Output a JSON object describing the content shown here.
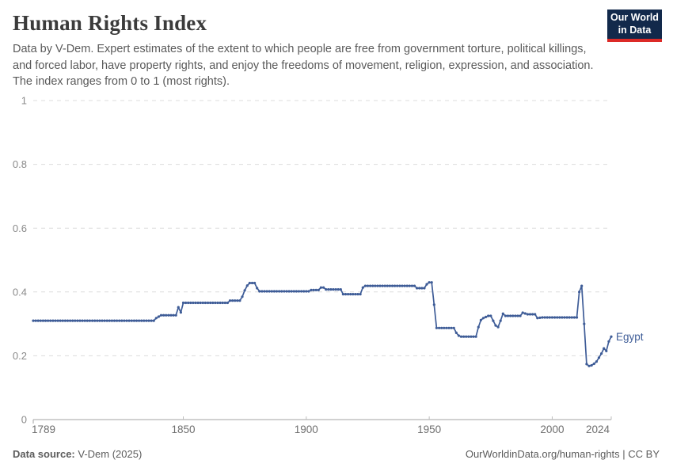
{
  "header": {
    "title": "Human Rights Index",
    "subtitle": "Data by V-Dem. Expert estimates of the extent to which people are free from government torture, political killings, and forced labor, have property rights, and enjoy the freedoms of movement, religion, expression, and association. The index ranges from 0 to 1 (most rights)."
  },
  "logo": {
    "line1": "Our World",
    "line2": "in Data",
    "bg_color": "#12294b",
    "bar_color": "#dc2a27"
  },
  "chart_data": {
    "type": "line",
    "title": "Human Rights Index",
    "xlabel": "",
    "ylabel": "",
    "grid": "horizontal-dashed",
    "legend_position": "end-of-line-label",
    "x_axis": {
      "min": 1789,
      "max": 2024,
      "ticks": [
        1789,
        1850,
        1900,
        1950,
        2000,
        2024
      ]
    },
    "y_axis": {
      "min": 0,
      "max": 1,
      "ticks": [
        0,
        0.2,
        0.4,
        0.6,
        0.8,
        1
      ]
    },
    "series": [
      {
        "name": "Egypt",
        "color": "#3e5c97",
        "points_note": "yearly values; breakpoints [year, index] linearly interpolated between",
        "points": [
          [
            1789,
            0.31
          ],
          [
            1838,
            0.31
          ],
          [
            1839,
            0.318
          ],
          [
            1841,
            0.327
          ],
          [
            1847,
            0.327
          ],
          [
            1848,
            0.352
          ],
          [
            1849,
            0.336
          ],
          [
            1850,
            0.366
          ],
          [
            1868,
            0.366
          ],
          [
            1869,
            0.373
          ],
          [
            1873,
            0.373
          ],
          [
            1874,
            0.385
          ],
          [
            1875,
            0.405
          ],
          [
            1876,
            0.42
          ],
          [
            1877,
            0.428
          ],
          [
            1879,
            0.428
          ],
          [
            1880,
            0.412
          ],
          [
            1881,
            0.402
          ],
          [
            1901,
            0.402
          ],
          [
            1902,
            0.406
          ],
          [
            1905,
            0.406
          ],
          [
            1906,
            0.414
          ],
          [
            1907,
            0.414
          ],
          [
            1908,
            0.408
          ],
          [
            1914,
            0.408
          ],
          [
            1915,
            0.393
          ],
          [
            1922,
            0.393
          ],
          [
            1923,
            0.414
          ],
          [
            1924,
            0.419
          ],
          [
            1944,
            0.419
          ],
          [
            1945,
            0.412
          ],
          [
            1948,
            0.412
          ],
          [
            1949,
            0.424
          ],
          [
            1950,
            0.43
          ],
          [
            1951,
            0.43
          ],
          [
            1952,
            0.36
          ],
          [
            1953,
            0.287
          ],
          [
            1960,
            0.287
          ],
          [
            1961,
            0.272
          ],
          [
            1962,
            0.263
          ],
          [
            1963,
            0.26
          ],
          [
            1969,
            0.26
          ],
          [
            1970,
            0.29
          ],
          [
            1971,
            0.312
          ],
          [
            1972,
            0.318
          ],
          [
            1974,
            0.325
          ],
          [
            1975,
            0.325
          ],
          [
            1976,
            0.31
          ],
          [
            1977,
            0.295
          ],
          [
            1978,
            0.29
          ],
          [
            1979,
            0.31
          ],
          [
            1980,
            0.332
          ],
          [
            1981,
            0.325
          ],
          [
            1987,
            0.325
          ],
          [
            1988,
            0.335
          ],
          [
            1990,
            0.33
          ],
          [
            1993,
            0.33
          ],
          [
            1994,
            0.318
          ],
          [
            1996,
            0.32
          ],
          [
            2010,
            0.32
          ],
          [
            2011,
            0.4
          ],
          [
            2012,
            0.419
          ],
          [
            2013,
            0.3
          ],
          [
            2014,
            0.174
          ],
          [
            2015,
            0.168
          ],
          [
            2016,
            0.17
          ],
          [
            2017,
            0.175
          ],
          [
            2018,
            0.182
          ],
          [
            2019,
            0.194
          ],
          [
            2020,
            0.207
          ],
          [
            2021,
            0.223
          ],
          [
            2022,
            0.215
          ],
          [
            2023,
            0.245
          ],
          [
            2024,
            0.26
          ]
        ]
      }
    ]
  },
  "footer": {
    "source_label": "Data source:",
    "source_value": " V-Dem (2025)",
    "credit": "OurWorldinData.org/human-rights | CC BY"
  }
}
